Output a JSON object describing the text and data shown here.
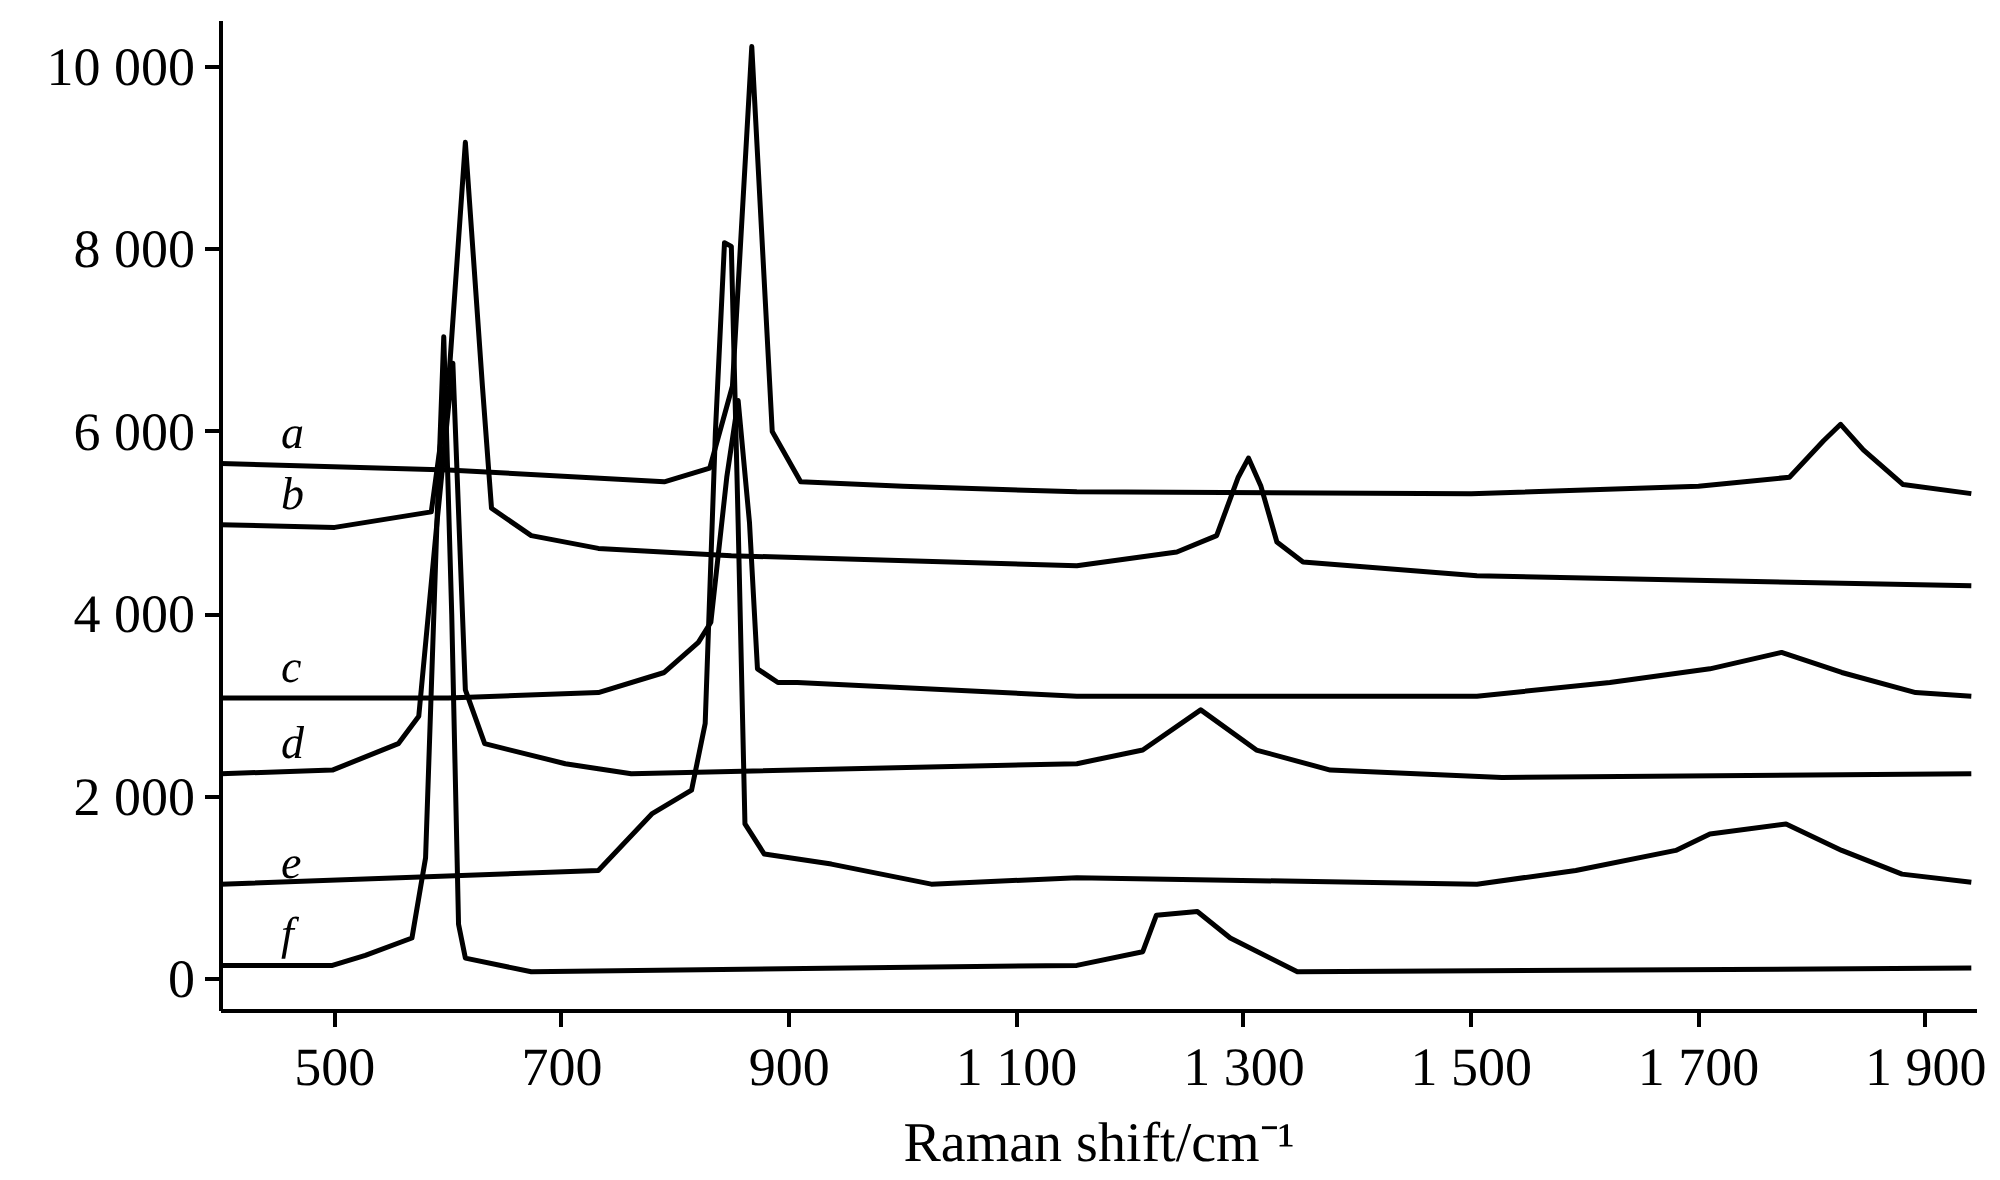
{
  "chart_data": {
    "type": "line",
    "xlabel": "Raman shift/cm⁻¹",
    "xlim": [
      400,
      1945
    ],
    "ylim": [
      -350,
      10500
    ],
    "xticks": [
      500,
      700,
      900,
      {
        "value": 1100,
        "label": "1 100"
      },
      {
        "value": 1300,
        "label": "1 300"
      },
      {
        "value": 1500,
        "label": "1 500"
      },
      {
        "value": 1700,
        "label": "1 700"
      },
      {
        "value": 1900,
        "label": "1 900"
      }
    ],
    "yticks": [
      0,
      {
        "value": 2000,
        "label": "2 000"
      },
      {
        "value": 4000,
        "label": "4 000"
      },
      {
        "value": 6000,
        "label": "6 000"
      },
      {
        "value": 8000,
        "label": "8 000"
      },
      {
        "value": 10000,
        "label": "10 000"
      }
    ],
    "grid": false,
    "marker": "none",
    "line_style": "solid",
    "series": [
      {
        "name": "a",
        "color": "#000000",
        "x": [
          400,
          600,
          790,
          830,
          850,
          867,
          885,
          910,
          1000,
          1153,
          1500,
          1700,
          1780,
          1810,
          1825,
          1845,
          1880,
          1940
        ],
        "values": [
          5650,
          5580,
          5450,
          5600,
          6500,
          10220,
          6000,
          5450,
          5400,
          5340,
          5320,
          5400,
          5500,
          5900,
          6080,
          5800,
          5420,
          5320
        ]
      },
      {
        "name": "b",
        "color": "#000000",
        "x": [
          400,
          500,
          585,
          600,
          615,
          630,
          638,
          673,
          732,
          849,
          1153,
          1241,
          1276,
          1295,
          1304,
          1315,
          1329,
          1352,
          1505,
          1940
        ],
        "values": [
          4980,
          4950,
          5120,
          6500,
          9170,
          6500,
          5160,
          4860,
          4720,
          4640,
          4530,
          4680,
          4860,
          5500,
          5710,
          5400,
          4790,
          4570,
          4420,
          4310
        ]
      },
      {
        "name": "c",
        "color": "#000000",
        "x": [
          400,
          600,
          732,
          790,
          820,
          831,
          845,
          855,
          865,
          872,
          890,
          907,
          1153,
          1505,
          1622,
          1710,
          1773,
          1826,
          1891,
          1940
        ],
        "values": [
          3080,
          3080,
          3140,
          3360,
          3690,
          3910,
          5500,
          6340,
          5000,
          3400,
          3250,
          3250,
          3100,
          3100,
          3250,
          3400,
          3580,
          3360,
          3140,
          3100
        ]
      },
      {
        "name": "d",
        "color": "#000000",
        "x": [
          400,
          498,
          556,
          574,
          590,
          604,
          615,
          632,
          703,
          761,
          1153,
          1211,
          1262,
          1311,
          1376,
          1527,
          1940
        ],
        "values": [
          2250,
          2290,
          2580,
          2880,
          5000,
          6750,
          3170,
          2580,
          2360,
          2250,
          2360,
          2510,
          2950,
          2510,
          2290,
          2210,
          2250
        ]
      },
      {
        "name": "e",
        "color": "#000000",
        "x": [
          400,
          732,
          779,
          814,
          826,
          835,
          843,
          849,
          855,
          861,
          878,
          937,
          1025,
          1153,
          1505,
          1592,
          1680,
          1710,
          1777,
          1826,
          1879,
          1940
        ],
        "values": [
          1040,
          1190,
          1810,
          2070,
          2800,
          6000,
          8070,
          8030,
          5000,
          1700,
          1370,
          1260,
          1040,
          1110,
          1040,
          1190,
          1410,
          1590,
          1700,
          1410,
          1150,
          1060
        ]
      },
      {
        "name": "f",
        "color": "#000000",
        "x": [
          400,
          498,
          527,
          568,
          580,
          590,
          596,
          603,
          609,
          615,
          673,
          1153,
          1211,
          1223,
          1259,
          1288,
          1347,
          1940
        ],
        "values": [
          150,
          150,
          260,
          450,
          1330,
          5000,
          7040,
          4000,
          600,
          230,
          80,
          150,
          300,
          700,
          740,
          450,
          80,
          120
        ]
      }
    ]
  }
}
